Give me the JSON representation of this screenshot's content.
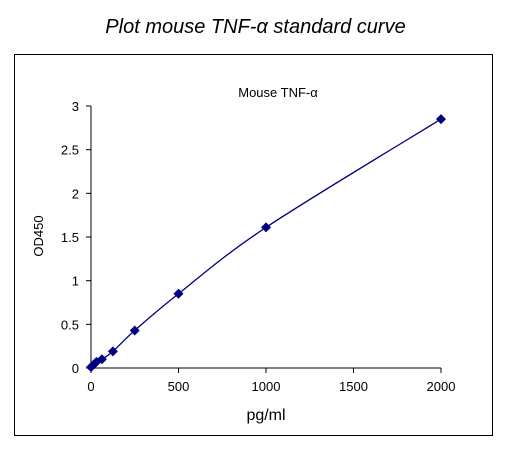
{
  "heading": "Plot mouse TNF-α standard curve",
  "colors": {
    "series": "#000080",
    "axis": "#000000"
  },
  "chart_data": {
    "type": "scatter",
    "title": "Mouse TNF-α",
    "xlabel": "pg/ml",
    "ylabel": "OD450",
    "xlim": [
      0,
      2000
    ],
    "ylim": [
      0,
      3
    ],
    "xticks": [
      0,
      500,
      1000,
      1500,
      2000
    ],
    "yticks": [
      0,
      0.5,
      1,
      1.5,
      2,
      2.5,
      3
    ],
    "xtick_labels": [
      "0",
      "500",
      "1000",
      "1500",
      "2000"
    ],
    "ytick_labels": [
      "0",
      "0.5",
      "1",
      "1.5",
      "2",
      "2.5",
      "3"
    ],
    "grid": false,
    "legend": "none",
    "trendline": "smooth",
    "marker": "diamond",
    "series": [
      {
        "x": [
          0,
          15.6,
          31.25,
          62.5,
          125,
          250,
          500,
          1000,
          2000
        ],
        "y": [
          0.01,
          0.04,
          0.07,
          0.1,
          0.19,
          0.43,
          0.85,
          1.61,
          2.85
        ]
      }
    ]
  }
}
